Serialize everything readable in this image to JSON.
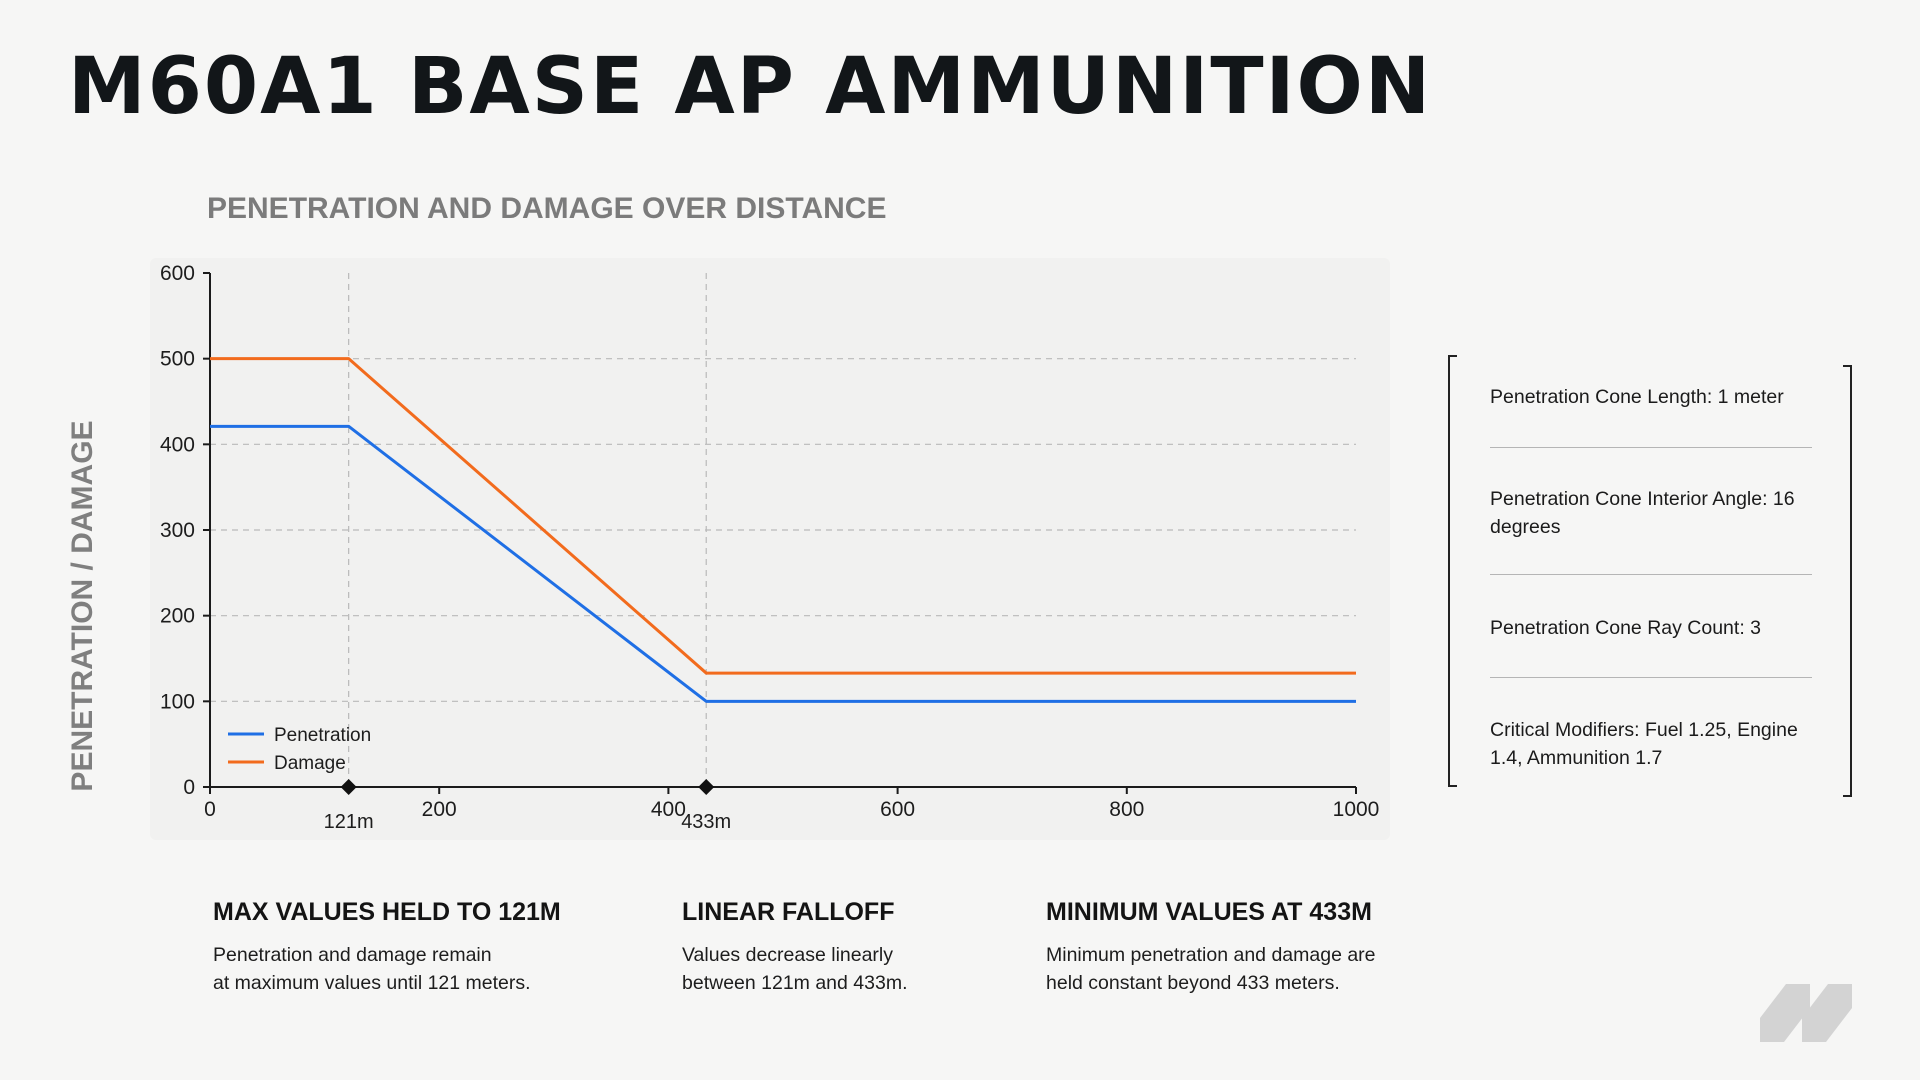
{
  "title": "M60A1 BASE AP AMMUNITION",
  "chart_data": {
    "type": "line",
    "title": "PENETRATION AND DAMAGE OVER DISTANCE",
    "xlabel": "",
    "ylabel": "PENETRATION / DAMAGE",
    "xlim": [
      0,
      1000
    ],
    "ylim": [
      0,
      600
    ],
    "xticks": [
      0,
      200,
      400,
      600,
      800,
      1000
    ],
    "yticks": [
      0,
      100,
      200,
      300,
      400,
      500,
      600
    ],
    "grid": "horizontal-dashed",
    "legend_position": "bottom-left",
    "series": [
      {
        "name": "Penetration",
        "color": "#1f6fe5",
        "x": [
          0,
          121,
          433,
          1000
        ],
        "y": [
          421,
          421,
          100,
          100
        ]
      },
      {
        "name": "Damage",
        "color": "#f26b1d",
        "x": [
          0,
          121,
          433,
          1000
        ],
        "y": [
          500,
          500,
          133,
          133
        ]
      }
    ],
    "markers": [
      {
        "x": 121,
        "label": "121m"
      },
      {
        "x": 433,
        "label": "433m"
      }
    ]
  },
  "specs": [
    {
      "text": "Penetration Cone Length: 1 meter"
    },
    {
      "text": "Penetration Cone Interior Angle: 16 degrees"
    },
    {
      "text": "Penetration Cone Ray Count: 3"
    },
    {
      "text": "Critical Modifiers: Fuel 1.25, Engine 1.4, Ammunition 1.7"
    }
  ],
  "notes": [
    {
      "title": "MAX VALUES HELD TO 121M",
      "line1": "Penetration and damage remain",
      "line2": "at maximum values until 121 meters."
    },
    {
      "title": "LINEAR FALLOFF",
      "line1": "Values decrease linearly",
      "line2": "between 121m and 433m."
    },
    {
      "title": "MINIMUM VALUES AT 433M",
      "line1": "Minimum penetration and damage are",
      "line2": "held constant beyond 433 meters."
    }
  ],
  "logo": {
    "icon": "brand-logo-icon",
    "color": "#d3d3d3"
  }
}
